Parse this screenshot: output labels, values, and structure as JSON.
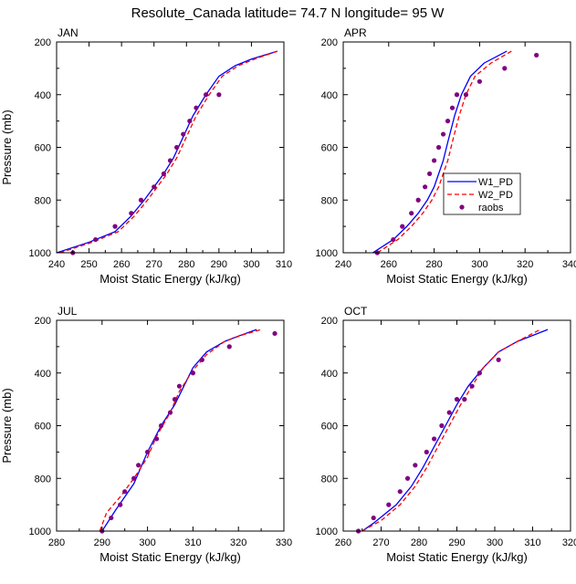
{
  "figure_title": "Resolute_Canada  latitude= 74.7 N longitude= 95 W",
  "colors": {
    "W1_PD": "#0000ff",
    "W2_PD": "#ff0000",
    "raobs": "#800080"
  },
  "chart_data": [
    {
      "type": "line",
      "panel": "JAN",
      "xlabel": "Moist Static Energy (kJ/kg)",
      "ylabel": "Pressure (mb)",
      "xlim": [
        240,
        310
      ],
      "ylim": [
        1000,
        200
      ],
      "xticks": [
        240,
        250,
        260,
        270,
        280,
        290,
        300,
        310
      ],
      "yticks": [
        200,
        400,
        600,
        800,
        1000
      ],
      "series": [
        {
          "name": "W1_PD",
          "style": "solid",
          "x": [
            240,
            250,
            258,
            263,
            267,
            270,
            273,
            276,
            279,
            282,
            286,
            290,
            295,
            300,
            308
          ],
          "y": [
            1000,
            960,
            920,
            860,
            800,
            750,
            700,
            640,
            560,
            480,
            400,
            330,
            290,
            265,
            235
          ]
        },
        {
          "name": "W2_PD",
          "style": "dashed",
          "x": [
            241,
            251,
            259,
            264,
            268,
            271,
            274,
            277,
            280,
            283,
            287,
            291,
            296,
            301,
            308
          ],
          "y": [
            1000,
            960,
            920,
            860,
            800,
            750,
            700,
            640,
            560,
            480,
            400,
            330,
            290,
            265,
            235
          ]
        },
        {
          "name": "raobs",
          "style": "markers",
          "x": [
            245,
            252,
            258,
            263,
            266,
            270,
            273,
            275,
            277,
            279,
            281,
            283,
            286,
            290
          ],
          "y": [
            1000,
            950,
            900,
            850,
            800,
            750,
            700,
            650,
            600,
            550,
            500,
            450,
            400,
            400
          ]
        }
      ]
    },
    {
      "type": "line",
      "panel": "APR",
      "xlabel": "Moist Static Energy (kJ/kg)",
      "ylabel": "",
      "xlim": [
        240,
        340
      ],
      "ylim": [
        1000,
        200
      ],
      "xticks": [
        240,
        260,
        280,
        300,
        320,
        340
      ],
      "yticks": [
        200,
        400,
        600,
        800,
        1000
      ],
      "legend_position": "right",
      "series": [
        {
          "name": "W1_PD",
          "style": "solid",
          "x": [
            253,
            262,
            268,
            273,
            277,
            280,
            282,
            284,
            286,
            289,
            292,
            296,
            302,
            312
          ],
          "y": [
            1000,
            950,
            900,
            850,
            800,
            750,
            700,
            650,
            580,
            480,
            400,
            330,
            280,
            235
          ]
        },
        {
          "name": "W2_PD",
          "style": "dashed",
          "x": [
            255,
            264,
            270,
            275,
            279,
            282,
            284,
            286,
            288,
            291,
            294,
            298,
            305,
            314
          ],
          "y": [
            1000,
            950,
            900,
            850,
            800,
            750,
            700,
            650,
            580,
            480,
            400,
            330,
            280,
            235
          ]
        },
        {
          "name": "raobs",
          "style": "markers",
          "x": [
            255,
            262,
            266,
            270,
            273,
            276,
            278,
            280,
            282,
            284,
            286,
            288,
            290,
            294,
            300,
            311,
            325
          ],
          "y": [
            1000,
            950,
            900,
            850,
            800,
            750,
            700,
            650,
            600,
            550,
            500,
            450,
            400,
            400,
            350,
            300,
            250
          ]
        }
      ]
    },
    {
      "type": "line",
      "panel": "JUL",
      "xlabel": "Moist Static Energy (kJ/kg)",
      "ylabel": "Pressure (mb)",
      "xlim": [
        280,
        330
      ],
      "ylim": [
        1000,
        200
      ],
      "xticks": [
        280,
        290,
        300,
        310,
        320,
        330
      ],
      "yticks": [
        200,
        400,
        600,
        800,
        1000
      ],
      "series": [
        {
          "name": "W1_PD",
          "style": "solid",
          "x": [
            290,
            293,
            297,
            300,
            303,
            306,
            308,
            310,
            313,
            317,
            320,
            324
          ],
          "y": [
            1000,
            920,
            820,
            700,
            600,
            520,
            450,
            380,
            320,
            280,
            260,
            235
          ]
        },
        {
          "name": "W2_PD",
          "style": "dashed",
          "x": [
            289.5,
            291,
            294,
            297,
            300,
            302,
            305,
            307,
            310,
            313,
            317,
            321,
            325
          ],
          "y": [
            1000,
            930,
            870,
            800,
            720,
            640,
            550,
            470,
            390,
            330,
            280,
            255,
            235
          ]
        },
        {
          "name": "raobs",
          "style": "markers",
          "x": [
            290,
            292,
            294,
            295,
            297,
            298,
            300,
            302,
            303,
            305,
            306,
            307,
            310,
            312,
            318,
            328
          ],
          "y": [
            1000,
            950,
            900,
            850,
            800,
            750,
            700,
            650,
            600,
            550,
            500,
            450,
            400,
            350,
            300,
            250
          ]
        }
      ]
    },
    {
      "type": "line",
      "panel": "OCT",
      "xlabel": "Moist Static Energy (kJ/kg)",
      "ylabel": "",
      "xlim": [
        260,
        320
      ],
      "ylim": [
        1000,
        200
      ],
      "xticks": [
        260,
        270,
        280,
        290,
        300,
        310,
        320
      ],
      "yticks": [
        200,
        400,
        600,
        800,
        1000
      ],
      "series": [
        {
          "name": "W1_PD",
          "style": "solid",
          "x": [
            265,
            268,
            274,
            278,
            281,
            284,
            287,
            290,
            293,
            297,
            301,
            306,
            314
          ],
          "y": [
            1000,
            970,
            900,
            830,
            760,
            680,
            600,
            520,
            450,
            380,
            320,
            280,
            235
          ]
        },
        {
          "name": "W2_PD",
          "style": "dashed",
          "x": [
            265,
            270,
            275,
            279,
            282,
            285,
            288,
            291,
            294,
            297,
            301,
            306,
            312
          ],
          "y": [
            1000,
            960,
            900,
            830,
            760,
            680,
            600,
            520,
            450,
            380,
            320,
            280,
            235
          ]
        },
        {
          "name": "raobs",
          "style": "markers",
          "x": [
            264,
            268,
            272,
            275,
            277,
            279,
            282,
            284,
            286,
            288,
            290,
            292,
            294,
            296,
            301
          ],
          "y": [
            1000,
            950,
            900,
            850,
            800,
            750,
            700,
            650,
            600,
            550,
            500,
            500,
            450,
            400,
            350
          ]
        }
      ]
    }
  ]
}
